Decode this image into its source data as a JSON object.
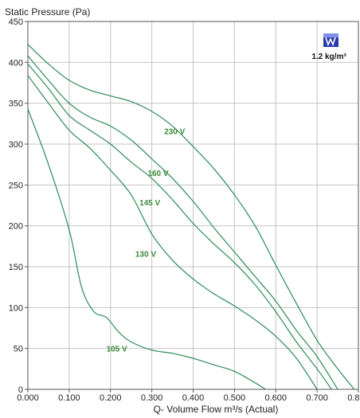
{
  "chart_data": {
    "type": "line",
    "ylabel": "Static Pressure (Pa)",
    "xlabel": "Q- Volume Flow m³/s (Actual)",
    "xlim": [
      0,
      0.8
    ],
    "ylim": [
      0,
      450
    ],
    "x_ticks": [
      "0.000",
      "0.100",
      "0.200",
      "0.300",
      "0.400",
      "0.500",
      "0.600",
      "0.700",
      "0.800"
    ],
    "y_ticks": [
      "0",
      "50",
      "100",
      "150",
      "200",
      "250",
      "300",
      "350",
      "400",
      "450"
    ],
    "grid": true,
    "line_color": "#2e8b57",
    "label_color": "#3a8a3a",
    "density_label": "1.2 kg/m³",
    "density_icon": "brand-logo-icon",
    "series": [
      {
        "name": "230 V",
        "label_at": [
          0.33,
          316
        ],
        "points": [
          [
            0,
            422
          ],
          [
            0.05,
            398
          ],
          [
            0.1,
            378
          ],
          [
            0.15,
            366
          ],
          [
            0.2,
            359
          ],
          [
            0.25,
            352
          ],
          [
            0.3,
            340
          ],
          [
            0.35,
            322
          ],
          [
            0.4,
            297
          ],
          [
            0.45,
            270
          ],
          [
            0.5,
            238
          ],
          [
            0.55,
            200
          ],
          [
            0.6,
            152
          ],
          [
            0.65,
            105
          ],
          [
            0.7,
            60
          ],
          [
            0.75,
            25
          ],
          [
            0.79,
            0
          ]
        ]
      },
      {
        "name": "160 V",
        "label_at": [
          0.29,
          265
        ],
        "points": [
          [
            0,
            408
          ],
          [
            0.05,
            378
          ],
          [
            0.1,
            350
          ],
          [
            0.15,
            333
          ],
          [
            0.2,
            322
          ],
          [
            0.25,
            305
          ],
          [
            0.3,
            282
          ],
          [
            0.35,
            258
          ],
          [
            0.4,
            230
          ],
          [
            0.45,
            198
          ],
          [
            0.5,
            168
          ],
          [
            0.55,
            138
          ],
          [
            0.6,
            108
          ],
          [
            0.65,
            72
          ],
          [
            0.7,
            40
          ],
          [
            0.75,
            0
          ]
        ]
      },
      {
        "name": "145 V",
        "label_at": [
          0.27,
          229
        ],
        "points": [
          [
            0,
            398
          ],
          [
            0.05,
            368
          ],
          [
            0.1,
            335
          ],
          [
            0.15,
            317
          ],
          [
            0.2,
            300
          ],
          [
            0.25,
            278
          ],
          [
            0.3,
            258
          ],
          [
            0.35,
            232
          ],
          [
            0.4,
            203
          ],
          [
            0.45,
            178
          ],
          [
            0.5,
            155
          ],
          [
            0.55,
            128
          ],
          [
            0.6,
            95
          ],
          [
            0.65,
            58
          ],
          [
            0.7,
            25
          ],
          [
            0.735,
            0
          ]
        ]
      },
      {
        "name": "130 V",
        "label_at": [
          0.26,
          166
        ],
        "points": [
          [
            0,
            384
          ],
          [
            0.05,
            350
          ],
          [
            0.1,
            317
          ],
          [
            0.15,
            295
          ],
          [
            0.2,
            268
          ],
          [
            0.25,
            238
          ],
          [
            0.3,
            190
          ],
          [
            0.35,
            158
          ],
          [
            0.4,
            135
          ],
          [
            0.45,
            117
          ],
          [
            0.5,
            102
          ],
          [
            0.55,
            85
          ],
          [
            0.6,
            65
          ],
          [
            0.65,
            38
          ],
          [
            0.7,
            0
          ]
        ]
      },
      {
        "name": "105 V",
        "label_at": [
          0.19,
          50
        ],
        "points": [
          [
            0,
            343
          ],
          [
            0.05,
            275
          ],
          [
            0.1,
            195
          ],
          [
            0.13,
            125
          ],
          [
            0.16,
            95
          ],
          [
            0.19,
            88
          ],
          [
            0.22,
            70
          ],
          [
            0.25,
            58
          ],
          [
            0.3,
            48
          ],
          [
            0.35,
            44
          ],
          [
            0.4,
            38
          ],
          [
            0.45,
            30
          ],
          [
            0.5,
            22
          ],
          [
            0.55,
            8
          ],
          [
            0.575,
            0
          ]
        ]
      }
    ]
  }
}
